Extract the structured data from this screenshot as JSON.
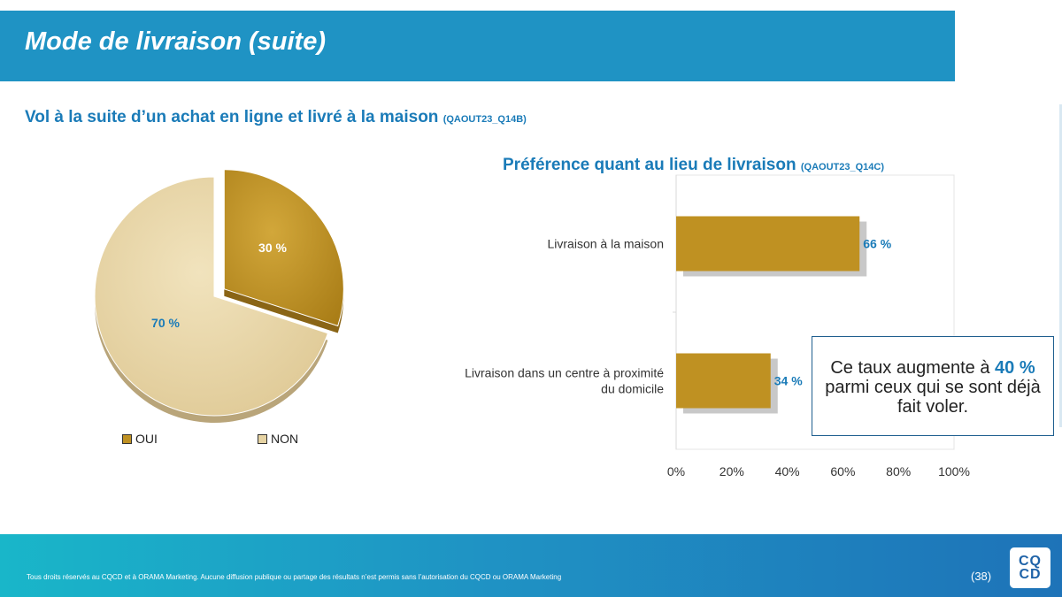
{
  "header": {
    "title": "Mode de livraison (suite)"
  },
  "section1": {
    "title": "Vol à la suite d’un achat en ligne et livré à la maison",
    "code": "(QAOUT23_Q14B)"
  },
  "section2": {
    "title": "Préférence quant au lieu de livraison",
    "code": "(QAOUT23_Q14C)"
  },
  "callout": {
    "prefix": "Ce taux augmente à ",
    "highlight": "40 %",
    "suffix": " parmi ceux qui se sont déjà fait voler."
  },
  "footer": {
    "copyright": "Tous droits réservés au CQCD et à ORAMA Marketing. Aucune diffusion publique ou partage des résultats n’est permis sans l’autorisation du CQCD ou ORAMA Marketing",
    "page": "(38)",
    "logo_line1": "CQ",
    "logo_line2": "CD"
  },
  "colors": {
    "oui": "#bf9122",
    "non": "#e6d3a3",
    "accent": "#1f93c4",
    "label_blue": "#1a7bb8"
  },
  "chart_data": [
    {
      "type": "pie",
      "categories": [
        "OUI",
        "NON"
      ],
      "values": [
        30,
        70
      ],
      "labels": [
        "30 %",
        "70 %"
      ],
      "legend": "bottom"
    },
    {
      "type": "bar",
      "orientation": "horizontal",
      "categories": [
        "Livraison à la maison",
        "Livraison dans un centre à proximité du domicile"
      ],
      "category_lines": [
        [
          "Livraison à la maison"
        ],
        [
          "Livraison dans un centre à proximité",
          "du domicile"
        ]
      ],
      "values": [
        66,
        34
      ],
      "labels": [
        "66 %",
        "34 %"
      ],
      "xlim": [
        0,
        100
      ],
      "xticks": [
        "0%",
        "20%",
        "40%",
        "60%",
        "80%",
        "100%"
      ]
    }
  ]
}
